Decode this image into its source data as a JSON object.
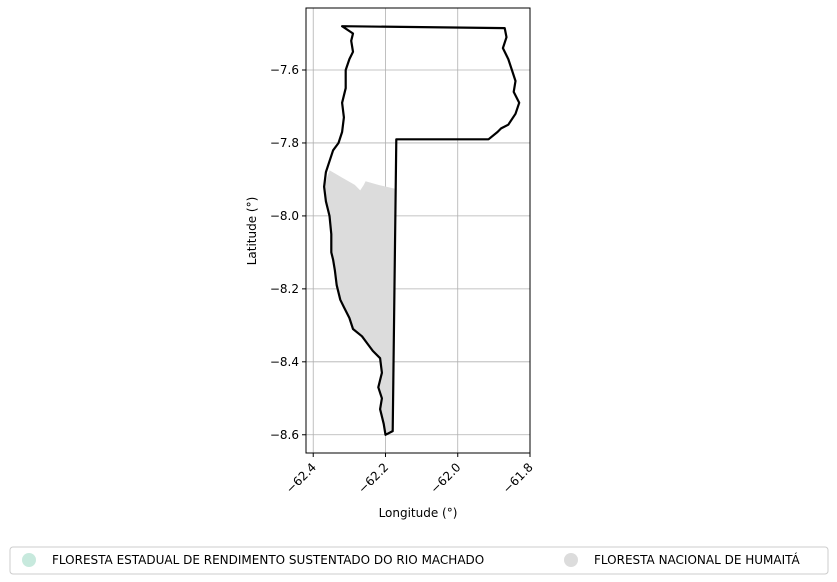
{
  "chart_data": {
    "type": "map",
    "xlabel": "Longitude (°)",
    "ylabel": "Latitude (°)",
    "xlim": [
      -62.42,
      -61.8
    ],
    "ylim": [
      -8.65,
      -7.43
    ],
    "xticks": [
      -62.4,
      -62.2,
      -62.0,
      -61.8
    ],
    "xtick_labels": [
      "−62.4",
      "−62.2",
      "−62.0",
      "−61.8"
    ],
    "yticks": [
      -7.6,
      -7.8,
      -8.0,
      -8.2,
      -8.4,
      -8.6
    ],
    "ytick_labels": [
      "−7.6",
      "−7.8",
      "−8.0",
      "−8.2",
      "−8.4",
      "−8.6"
    ],
    "grid": true,
    "legend_placement": "bottom-center",
    "series": [
      {
        "name": "FLORESTA ESTADUAL DE RENDIMENTO SUSTENTADO DO RIO MACHADO",
        "color": "#c7e9dd",
        "style": "outline",
        "edge_color": "#000000",
        "boundary": [
          [
            -62.32,
            -7.48
          ],
          [
            -61.87,
            -7.485
          ],
          [
            -61.865,
            -7.51
          ],
          [
            -61.875,
            -7.54
          ],
          [
            -61.86,
            -7.57
          ],
          [
            -61.85,
            -7.6
          ],
          [
            -61.84,
            -7.63
          ],
          [
            -61.845,
            -7.66
          ],
          [
            -61.83,
            -7.69
          ],
          [
            -61.84,
            -7.72
          ],
          [
            -61.86,
            -7.75
          ],
          [
            -61.88,
            -7.76
          ],
          [
            -61.89,
            -7.77
          ],
          [
            -61.915,
            -7.79
          ],
          [
            -62.17,
            -7.79
          ],
          [
            -62.18,
            -8.59
          ],
          [
            -62.2,
            -8.6
          ],
          [
            -62.205,
            -8.57
          ],
          [
            -62.215,
            -8.53
          ],
          [
            -62.21,
            -8.5
          ],
          [
            -62.22,
            -8.47
          ],
          [
            -62.21,
            -8.43
          ],
          [
            -62.215,
            -8.39
          ],
          [
            -62.235,
            -8.37
          ],
          [
            -62.25,
            -8.35
          ],
          [
            -62.265,
            -8.33
          ],
          [
            -62.29,
            -8.31
          ],
          [
            -62.3,
            -8.28
          ],
          [
            -62.315,
            -8.25
          ],
          [
            -62.325,
            -8.23
          ],
          [
            -62.335,
            -8.19
          ],
          [
            -62.34,
            -8.15
          ],
          [
            -62.345,
            -8.12
          ],
          [
            -62.35,
            -8.1
          ],
          [
            -62.35,
            -8.05
          ],
          [
            -62.355,
            -8.0
          ],
          [
            -62.365,
            -7.96
          ],
          [
            -62.37,
            -7.92
          ],
          [
            -62.365,
            -7.88
          ],
          [
            -62.355,
            -7.85
          ],
          [
            -62.345,
            -7.82
          ],
          [
            -62.33,
            -7.8
          ],
          [
            -62.32,
            -7.77
          ],
          [
            -62.315,
            -7.73
          ],
          [
            -62.32,
            -7.69
          ],
          [
            -62.31,
            -7.65
          ],
          [
            -62.31,
            -7.6
          ],
          [
            -62.3,
            -7.57
          ],
          [
            -62.29,
            -7.55
          ],
          [
            -62.295,
            -7.52
          ],
          [
            -62.29,
            -7.5
          ],
          [
            -62.32,
            -7.48
          ]
        ]
      },
      {
        "name": "FLORESTA NACIONAL DE HUMAITÁ",
        "color": "#dcdcdc",
        "style": "fill",
        "boundary": [
          [
            -62.355,
            -7.875
          ],
          [
            -62.32,
            -7.895
          ],
          [
            -62.285,
            -7.915
          ],
          [
            -62.27,
            -7.93
          ],
          [
            -62.26,
            -7.915
          ],
          [
            -62.255,
            -7.905
          ],
          [
            -62.22,
            -7.915
          ],
          [
            -62.175,
            -7.925
          ],
          [
            -62.18,
            -8.59
          ],
          [
            -62.2,
            -8.6
          ],
          [
            -62.205,
            -8.57
          ],
          [
            -62.215,
            -8.53
          ],
          [
            -62.21,
            -8.5
          ],
          [
            -62.22,
            -8.47
          ],
          [
            -62.21,
            -8.43
          ],
          [
            -62.215,
            -8.39
          ],
          [
            -62.235,
            -8.37
          ],
          [
            -62.25,
            -8.35
          ],
          [
            -62.265,
            -8.33
          ],
          [
            -62.29,
            -8.31
          ],
          [
            -62.3,
            -8.28
          ],
          [
            -62.315,
            -8.25
          ],
          [
            -62.325,
            -8.23
          ],
          [
            -62.335,
            -8.19
          ],
          [
            -62.34,
            -8.15
          ],
          [
            -62.345,
            -8.12
          ],
          [
            -62.35,
            -8.1
          ],
          [
            -62.35,
            -8.05
          ],
          [
            -62.355,
            -8.0
          ],
          [
            -62.365,
            -7.96
          ],
          [
            -62.37,
            -7.92
          ],
          [
            -62.355,
            -7.875
          ]
        ]
      }
    ]
  }
}
